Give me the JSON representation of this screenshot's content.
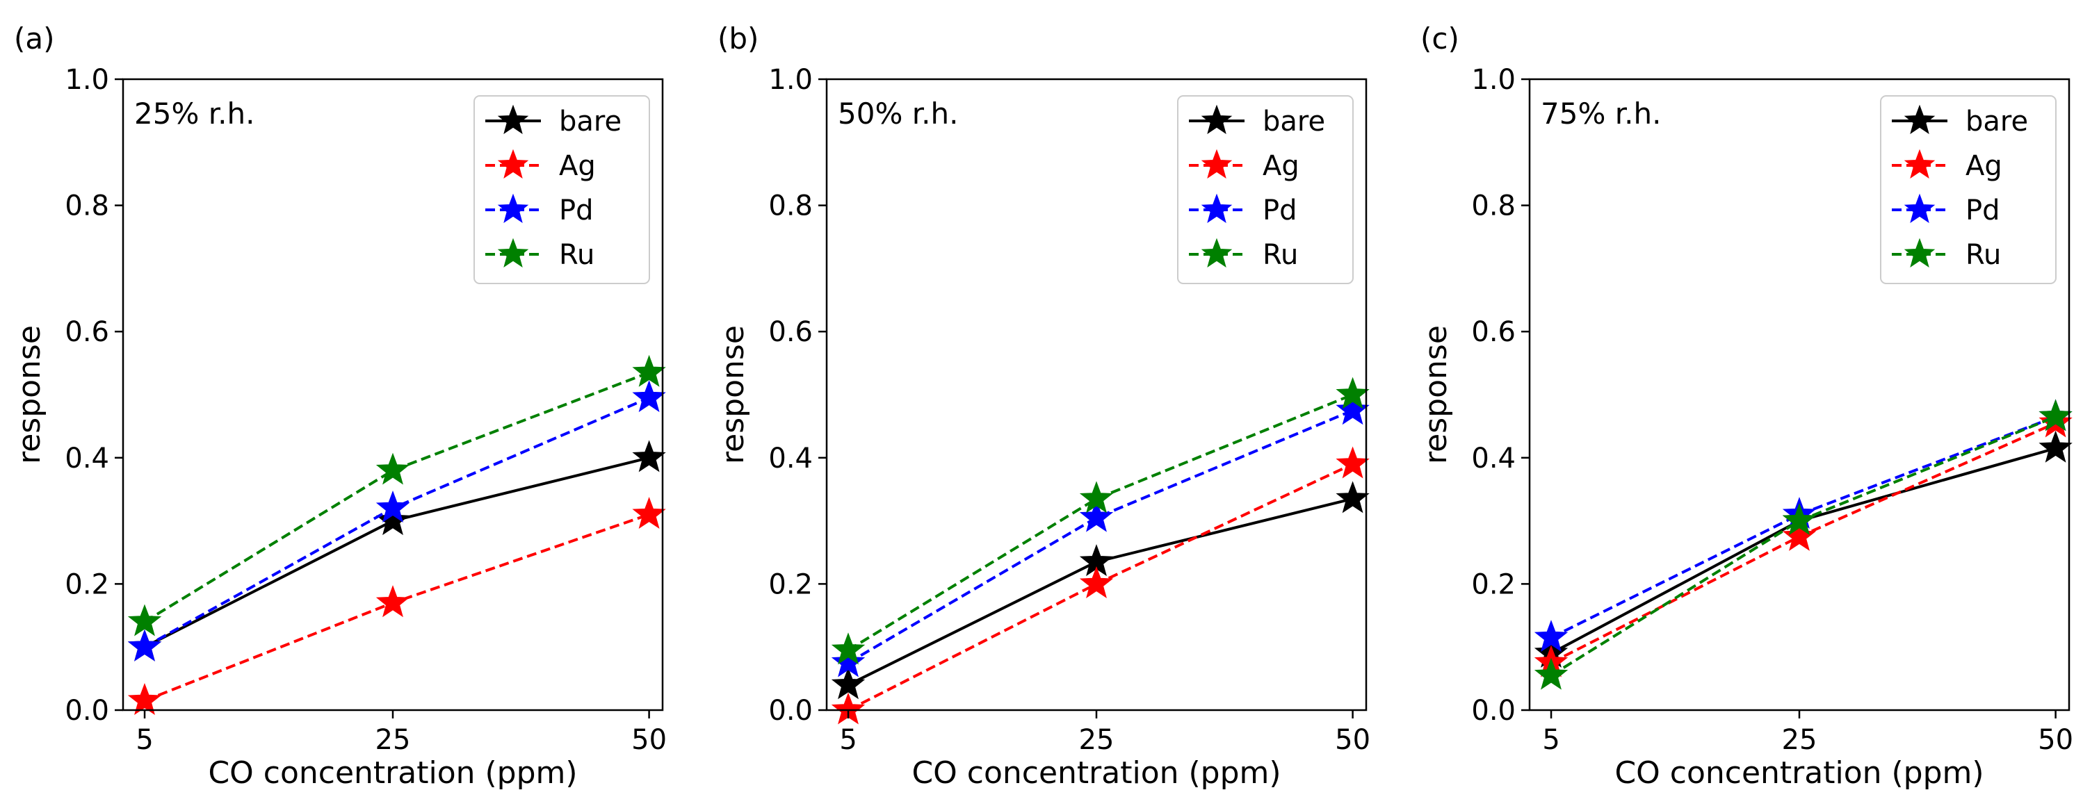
{
  "figure": {
    "colors": {
      "bare": "#000000",
      "Ag": "#ff0000",
      "Pd": "#0000ff",
      "Ru": "#008000"
    }
  },
  "chart_data": [
    {
      "panel_label": "(a)",
      "type": "line",
      "annotation": "25% r.h.",
      "xlabel": "CO concentration (ppm)",
      "ylabel": "response",
      "categories": [
        "5",
        "25",
        "50"
      ],
      "ylim": [
        0,
        1.0
      ],
      "yticks": [
        "0.0",
        "0.2",
        "0.4",
        "0.6",
        "0.8",
        "1.0"
      ],
      "legend_position": "upper-right",
      "series": [
        {
          "name": "bare",
          "style": "solid",
          "values": [
            0.1,
            0.3,
            0.4
          ]
        },
        {
          "name": "Ag",
          "style": "dashed",
          "values": [
            0.015,
            0.17,
            0.31
          ]
        },
        {
          "name": "Pd",
          "style": "dashed",
          "values": [
            0.1,
            0.32,
            0.495
          ]
        },
        {
          "name": "Ru",
          "style": "dashed",
          "values": [
            0.14,
            0.38,
            0.535
          ]
        }
      ]
    },
    {
      "panel_label": "(b)",
      "type": "line",
      "annotation": "50% r.h.",
      "xlabel": "CO concentration (ppm)",
      "ylabel": "response",
      "categories": [
        "5",
        "25",
        "50"
      ],
      "ylim": [
        0,
        1.0
      ],
      "yticks": [
        "0.0",
        "0.2",
        "0.4",
        "0.6",
        "0.8",
        "1.0"
      ],
      "legend_position": "upper-right",
      "series": [
        {
          "name": "bare",
          "style": "solid",
          "values": [
            0.04,
            0.235,
            0.335
          ]
        },
        {
          "name": "Ag",
          "style": "dashed",
          "values": [
            0.0,
            0.2,
            0.39
          ]
        },
        {
          "name": "Pd",
          "style": "dashed",
          "values": [
            0.075,
            0.305,
            0.475
          ]
        },
        {
          "name": "Ru",
          "style": "dashed",
          "values": [
            0.095,
            0.335,
            0.5
          ]
        }
      ]
    },
    {
      "panel_label": "(c)",
      "type": "line",
      "annotation": "75% r.h.",
      "xlabel": "CO concentration (ppm)",
      "ylabel": "response",
      "categories": [
        "5",
        "25",
        "50"
      ],
      "ylim": [
        0,
        1.0
      ],
      "yticks": [
        "0.0",
        "0.2",
        "0.4",
        "0.6",
        "0.8",
        "1.0"
      ],
      "legend_position": "upper-right",
      "series": [
        {
          "name": "bare",
          "style": "solid",
          "values": [
            0.09,
            0.3,
            0.415
          ]
        },
        {
          "name": "Ag",
          "style": "dashed",
          "values": [
            0.075,
            0.275,
            0.455
          ]
        },
        {
          "name": "Pd",
          "style": "dashed",
          "values": [
            0.115,
            0.31,
            0.465
          ]
        },
        {
          "name": "Ru",
          "style": "dashed",
          "values": [
            0.055,
            0.3,
            0.465
          ]
        }
      ]
    }
  ]
}
